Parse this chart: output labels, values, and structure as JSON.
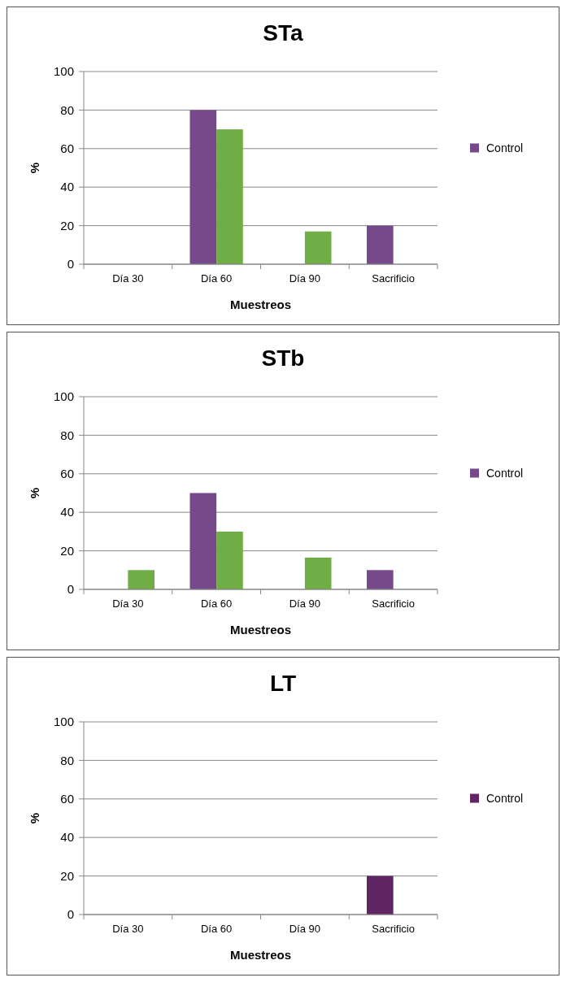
{
  "chart_data": [
    {
      "type": "bar",
      "title": "STa",
      "xlabel": "Muestreos",
      "ylabel": "%",
      "categories": [
        "Día 30",
        "Día 60",
        "Día 90",
        "Sacrificio"
      ],
      "ylim": [
        0,
        100
      ],
      "yticks": [
        0,
        20,
        40,
        60,
        80,
        100
      ],
      "grid": "y",
      "legend": "right",
      "series": [
        {
          "name": "Control",
          "color": "#75498a",
          "values": [
            0,
            80,
            0,
            20
          ]
        },
        {
          "color": "#70ad47",
          "values": [
            0,
            70,
            17,
            0
          ]
        }
      ]
    },
    {
      "type": "bar",
      "title": "STb",
      "xlabel": "Muestreos",
      "ylabel": "%",
      "categories": [
        "Día 30",
        "Día 60",
        "Día 90",
        "Sacrificio"
      ],
      "ylim": [
        0,
        100
      ],
      "yticks": [
        0,
        20,
        40,
        60,
        80,
        100
      ],
      "grid": "y",
      "legend": "right",
      "series": [
        {
          "name": "Control",
          "color": "#75498a",
          "values": [
            0,
            50,
            0,
            10
          ]
        },
        {
          "color": "#70ad47",
          "values": [
            10,
            30,
            16.5,
            0
          ]
        }
      ]
    },
    {
      "type": "bar",
      "title": "LT",
      "xlabel": "Muestreos",
      "ylabel": "%",
      "categories": [
        "Día 30",
        "Día 60",
        "Día 90",
        "Sacrificio"
      ],
      "ylim": [
        0,
        100
      ],
      "yticks": [
        0,
        20,
        40,
        60,
        80,
        100
      ],
      "grid": "y",
      "legend": "right",
      "series": [
        {
          "name": "Control",
          "color": "#5f2663",
          "values": [
            0,
            0,
            0,
            20
          ]
        },
        {
          "color": "#65a11f",
          "values": [
            0,
            0,
            0,
            0
          ]
        }
      ]
    }
  ]
}
